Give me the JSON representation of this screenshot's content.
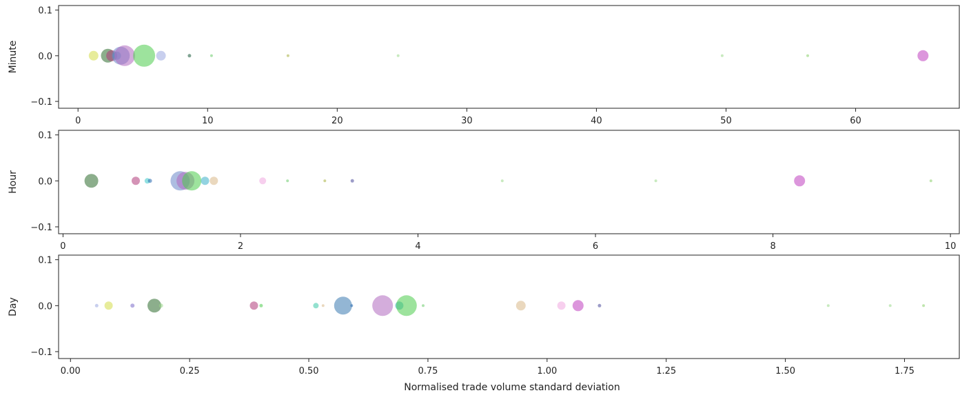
{
  "chart_data": [
    {
      "type": "scatter",
      "ylabel": "Minute",
      "xlabel": "",
      "xlim": [
        -1.5,
        68
      ],
      "ylim": [
        -0.115,
        0.11
      ],
      "xticks": [
        0,
        10,
        20,
        30,
        40,
        50,
        60
      ],
      "xtick_labels": [
        "0",
        "10",
        "20",
        "30",
        "40",
        "50",
        "60"
      ],
      "yticks": [
        0.1,
        0.0,
        -0.1
      ],
      "ytick_labels": [
        "0.1",
        "0.0",
        "−0.1"
      ],
      "points": [
        {
          "x": 1.2,
          "y": 0.0,
          "size": 7,
          "color": "#d4dc48"
        },
        {
          "x": 2.3,
          "y": 0.0,
          "size": 10,
          "color": "#2e6b2e"
        },
        {
          "x": 2.6,
          "y": 0.0,
          "size": 8,
          "color": "#b03a7a"
        },
        {
          "x": 3.0,
          "y": 0.0,
          "size": 6,
          "color": "#3aaec8"
        },
        {
          "x": 3.3,
          "y": 0.0,
          "size": 13,
          "color": "#6a86c8"
        },
        {
          "x": 3.6,
          "y": 0.0,
          "size": 15,
          "color": "#b06ac0"
        },
        {
          "x": 5.1,
          "y": 0.0,
          "size": 16,
          "color": "#4ccc4c"
        },
        {
          "x": 6.4,
          "y": 0.0,
          "size": 7,
          "color": "#9aa8e0"
        },
        {
          "x": 8.6,
          "y": 0.0,
          "size": 2.5,
          "color": "#1a5a3a"
        },
        {
          "x": 10.3,
          "y": 0.0,
          "size": 2,
          "color": "#6ccc6c"
        },
        {
          "x": 16.2,
          "y": 0.0,
          "size": 2,
          "color": "#a8b040"
        },
        {
          "x": 24.7,
          "y": 0.0,
          "size": 2,
          "color": "#9ad88a"
        },
        {
          "x": 49.7,
          "y": 0.0,
          "size": 2,
          "color": "#9ad88a"
        },
        {
          "x": 56.3,
          "y": 0.0,
          "size": 2,
          "color": "#8ad06a"
        },
        {
          "x": 65.2,
          "y": 0.0,
          "size": 8,
          "color": "#c040c0"
        }
      ]
    },
    {
      "type": "scatter",
      "ylabel": "Hour",
      "xlabel": "",
      "xlim": [
        -0.05,
        10.1
      ],
      "ylim": [
        -0.115,
        0.11
      ],
      "xticks": [
        0,
        2,
        4,
        6,
        8,
        10
      ],
      "xtick_labels": [
        "0",
        "2",
        "4",
        "6",
        "8",
        "10"
      ],
      "yticks": [
        0.1,
        0.0,
        -0.1
      ],
      "ytick_labels": [
        "0.1",
        "0.0",
        "−0.1"
      ],
      "points": [
        {
          "x": 0.32,
          "y": 0.0,
          "size": 10,
          "color": "#2e6b2e"
        },
        {
          "x": 0.82,
          "y": 0.0,
          "size": 6,
          "color": "#b03a7a"
        },
        {
          "x": 0.95,
          "y": 0.0,
          "size": 4,
          "color": "#3ac8c8"
        },
        {
          "x": 0.98,
          "y": 0.0,
          "size": 3,
          "color": "#2a6ab0"
        },
        {
          "x": 1.32,
          "y": 0.0,
          "size": 14,
          "color": "#6a86c8"
        },
        {
          "x": 1.38,
          "y": 0.0,
          "size": 13,
          "color": "#b06ac0"
        },
        {
          "x": 1.45,
          "y": 0.0,
          "size": 14,
          "color": "#4ccc4c"
        },
        {
          "x": 1.6,
          "y": 0.0,
          "size": 6,
          "color": "#3aaec8"
        },
        {
          "x": 1.7,
          "y": 0.0,
          "size": 6,
          "color": "#d8b888"
        },
        {
          "x": 2.25,
          "y": 0.0,
          "size": 5,
          "color": "#f0a8e0"
        },
        {
          "x": 2.53,
          "y": 0.0,
          "size": 2,
          "color": "#6ccc6c"
        },
        {
          "x": 2.95,
          "y": 0.0,
          "size": 2,
          "color": "#a8b040"
        },
        {
          "x": 3.26,
          "y": 0.0,
          "size": 2.5,
          "color": "#4a4a9a"
        },
        {
          "x": 4.95,
          "y": 0.0,
          "size": 2,
          "color": "#9ad88a"
        },
        {
          "x": 6.68,
          "y": 0.0,
          "size": 2,
          "color": "#9ad88a"
        },
        {
          "x": 8.3,
          "y": 0.0,
          "size": 8,
          "color": "#c040c0"
        },
        {
          "x": 9.78,
          "y": 0.0,
          "size": 2,
          "color": "#8ad06a"
        }
      ]
    },
    {
      "type": "scatter",
      "ylabel": "Day",
      "xlabel": "Normalised trade volume standard deviation",
      "xlim": [
        -0.025,
        1.865
      ],
      "ylim": [
        -0.115,
        0.11
      ],
      "xticks": [
        0,
        0.25,
        0.5,
        0.75,
        1.0,
        1.25,
        1.5,
        1.75
      ],
      "xtick_labels": [
        "0.00",
        "0.25",
        "0.50",
        "0.75",
        "1.00",
        "1.25",
        "1.50",
        "1.75"
      ],
      "yticks": [
        0.1,
        0.0,
        -0.1
      ],
      "ytick_labels": [
        "0.1",
        "0.0",
        "−0.1"
      ],
      "points": [
        {
          "x": 0.055,
          "y": 0.0,
          "size": 2.5,
          "color": "#9aa8e0"
        },
        {
          "x": 0.08,
          "y": 0.0,
          "size": 6,
          "color": "#d4dc48"
        },
        {
          "x": 0.13,
          "y": 0.0,
          "size": 3,
          "color": "#7a6ac8"
        },
        {
          "x": 0.176,
          "y": 0.0,
          "size": 10,
          "color": "#2e6b2e"
        },
        {
          "x": 0.19,
          "y": 0.0,
          "size": 3,
          "color": "#9ad88a"
        },
        {
          "x": 0.385,
          "y": 0.0,
          "size": 6,
          "color": "#b03a7a"
        },
        {
          "x": 0.4,
          "y": 0.0,
          "size": 2.5,
          "color": "#4ccc4c"
        },
        {
          "x": 0.515,
          "y": 0.0,
          "size": 4,
          "color": "#3ac8a8"
        },
        {
          "x": 0.53,
          "y": 0.0,
          "size": 2,
          "color": "#d8b888"
        },
        {
          "x": 0.572,
          "y": 0.0,
          "size": 13,
          "color": "#3a7ab0"
        },
        {
          "x": 0.59,
          "y": 0.0,
          "size": 2,
          "color": "#2a6ab0"
        },
        {
          "x": 0.655,
          "y": 0.0,
          "size": 15,
          "color": "#b06ac0"
        },
        {
          "x": 0.69,
          "y": 0.0,
          "size": 6,
          "color": "#3aaec8"
        },
        {
          "x": 0.705,
          "y": 0.0,
          "size": 15,
          "color": "#4ccc4c"
        },
        {
          "x": 0.74,
          "y": 0.0,
          "size": 2,
          "color": "#6ccc6c"
        },
        {
          "x": 0.945,
          "y": 0.0,
          "size": 7,
          "color": "#d8b888"
        },
        {
          "x": 1.03,
          "y": 0.0,
          "size": 6,
          "color": "#f0a8e0"
        },
        {
          "x": 1.065,
          "y": 0.0,
          "size": 8,
          "color": "#c040c0"
        },
        {
          "x": 1.11,
          "y": 0.0,
          "size": 2.5,
          "color": "#4a4a9a"
        },
        {
          "x": 1.59,
          "y": 0.0,
          "size": 2,
          "color": "#9ad88a"
        },
        {
          "x": 1.72,
          "y": 0.0,
          "size": 2,
          "color": "#9ad88a"
        },
        {
          "x": 1.79,
          "y": 0.0,
          "size": 2,
          "color": "#8ad06a"
        }
      ]
    }
  ]
}
